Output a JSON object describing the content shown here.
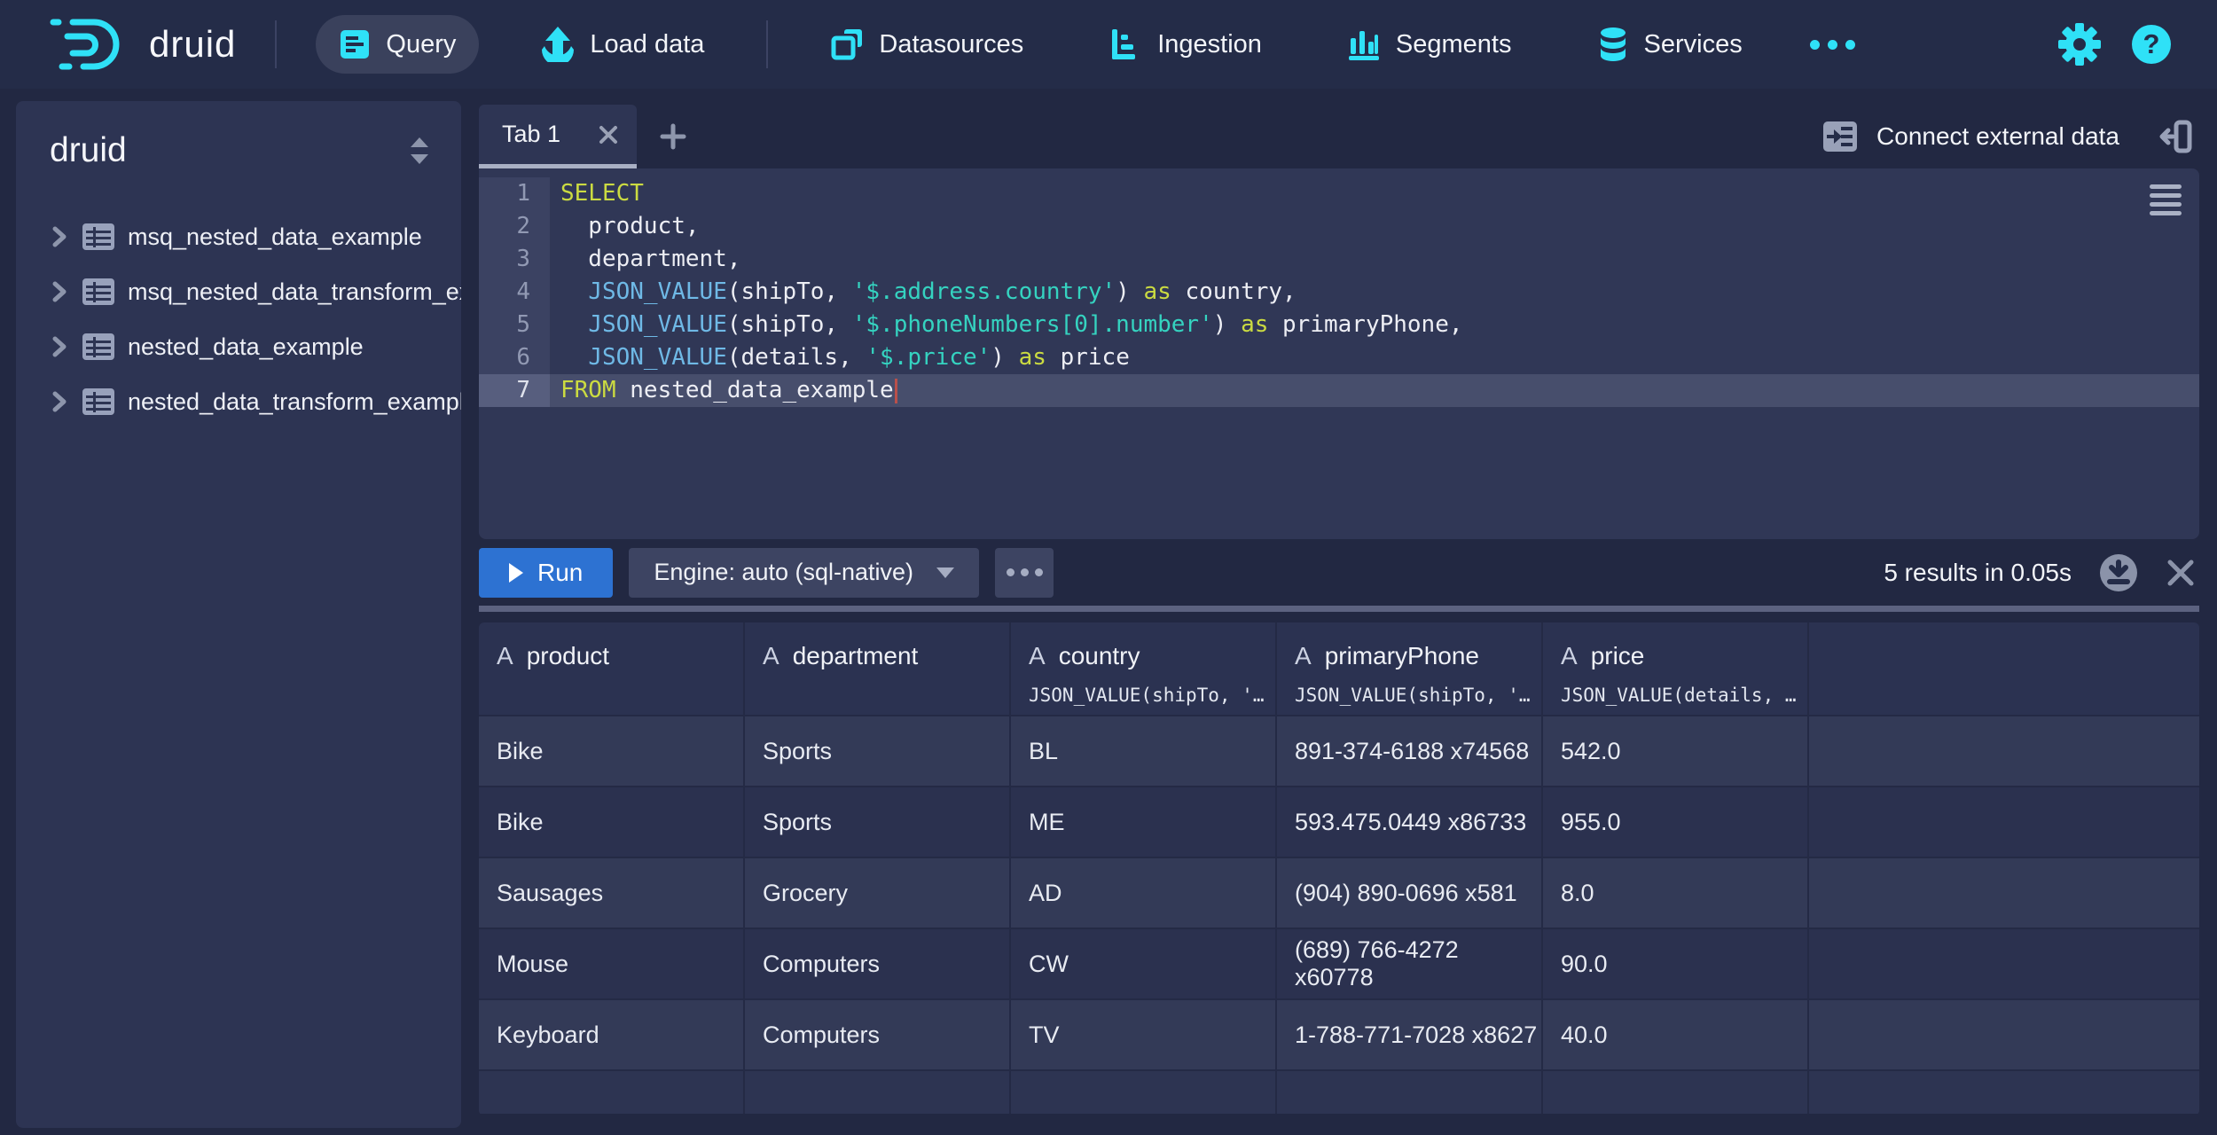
{
  "colors": {
    "accent": "#2fe1f7",
    "run_button": "#2d72d2",
    "keyword": "#cbdb41",
    "function": "#6fb9e6",
    "string": "#35d3c0",
    "cursor": "#b9504b"
  },
  "nav": {
    "logo_text": "druid",
    "items": [
      {
        "label": "Query",
        "icon": "query-icon",
        "active": true
      },
      {
        "label": "Load data",
        "icon": "load-data-icon",
        "active": false
      },
      {
        "label": "Datasources",
        "icon": "datasources-icon",
        "active": false
      },
      {
        "label": "Ingestion",
        "icon": "ingestion-icon",
        "active": false
      },
      {
        "label": "Segments",
        "icon": "segments-icon",
        "active": false
      },
      {
        "label": "Services",
        "icon": "services-icon",
        "active": false
      }
    ]
  },
  "sidebar": {
    "title": "druid",
    "items": [
      {
        "label": "msq_nested_data_example"
      },
      {
        "label": "msq_nested_data_transform_ex"
      },
      {
        "label": "nested_data_example"
      },
      {
        "label": "nested_data_transform_exampl"
      }
    ]
  },
  "tabbar": {
    "active_tab": "Tab 1",
    "connect_label": "Connect external data"
  },
  "editor": {
    "lines": [
      {
        "n": "1",
        "seg": [
          {
            "c": "kw",
            "s": "SELECT"
          }
        ]
      },
      {
        "n": "2",
        "seg": [
          {
            "c": "pl",
            "s": "  product,"
          }
        ]
      },
      {
        "n": "3",
        "seg": [
          {
            "c": "pl",
            "s": "  department,"
          }
        ]
      },
      {
        "n": "4",
        "seg": [
          {
            "c": "pl",
            "s": "  "
          },
          {
            "c": "fn",
            "s": "JSON_VALUE"
          },
          {
            "c": "pl",
            "s": "(shipTo, "
          },
          {
            "c": "str",
            "s": "'$.address.country'"
          },
          {
            "c": "pl",
            "s": ") "
          },
          {
            "c": "kw",
            "s": "as"
          },
          {
            "c": "pl",
            "s": " country,"
          }
        ]
      },
      {
        "n": "5",
        "seg": [
          {
            "c": "pl",
            "s": "  "
          },
          {
            "c": "fn",
            "s": "JSON_VALUE"
          },
          {
            "c": "pl",
            "s": "(shipTo, "
          },
          {
            "c": "str",
            "s": "'$.phoneNumbers[0].number'"
          },
          {
            "c": "pl",
            "s": ") "
          },
          {
            "c": "kw",
            "s": "as"
          },
          {
            "c": "pl",
            "s": " primaryPhone,"
          }
        ]
      },
      {
        "n": "6",
        "seg": [
          {
            "c": "pl",
            "s": "  "
          },
          {
            "c": "fn",
            "s": "JSON_VALUE"
          },
          {
            "c": "pl",
            "s": "(details, "
          },
          {
            "c": "str",
            "s": "'$.price'"
          },
          {
            "c": "pl",
            "s": ") "
          },
          {
            "c": "kw",
            "s": "as"
          },
          {
            "c": "pl",
            "s": " price"
          }
        ]
      },
      {
        "n": "7",
        "seg": [
          {
            "c": "kw",
            "s": "FROM"
          },
          {
            "c": "pl",
            "s": " nested_data_example"
          }
        ],
        "current": true
      }
    ]
  },
  "runbar": {
    "run_label": "Run",
    "engine_label": "Engine: auto (sql-native)",
    "results_text": "5 results in 0.05s"
  },
  "results": {
    "columns": [
      {
        "type_icon": "A",
        "name": "product",
        "expr": ""
      },
      {
        "type_icon": "A",
        "name": "department",
        "expr": ""
      },
      {
        "type_icon": "A",
        "name": "country",
        "expr": "JSON_VALUE(shipTo, '…"
      },
      {
        "type_icon": "A",
        "name": "primaryPhone",
        "expr": "JSON_VALUE(shipTo, '…"
      },
      {
        "type_icon": "A",
        "name": "price",
        "expr": "JSON_VALUE(details, …"
      }
    ],
    "rows": [
      [
        "Bike",
        "Sports",
        "BL",
        "891-374-6188 x74568",
        "542.0"
      ],
      [
        "Bike",
        "Sports",
        "ME",
        "593.475.0449 x86733",
        "955.0"
      ],
      [
        "Sausages",
        "Grocery",
        "AD",
        "(904) 890-0696 x581",
        "8.0"
      ],
      [
        "Mouse",
        "Computers",
        "CW",
        "(689) 766-4272 x60778",
        "90.0"
      ],
      [
        "Keyboard",
        "Computers",
        "TV",
        "1-788-771-7028 x8627",
        "40.0"
      ]
    ]
  }
}
